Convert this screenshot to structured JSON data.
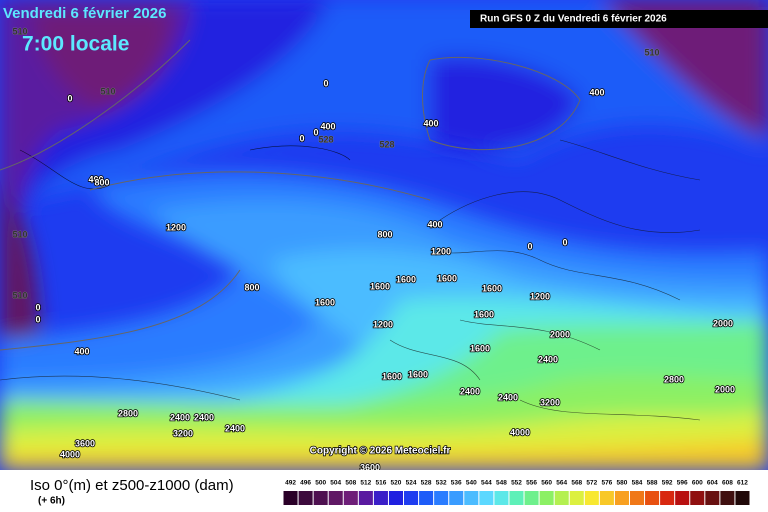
{
  "header": {
    "date": "Vendredi 6 février 2026",
    "time": "7:00 locale",
    "run": "Run GFS 0 Z du Vendredi 6 février 2026"
  },
  "contour_labels": [
    "510",
    "510",
    "510",
    "510",
    "510",
    "0",
    "0",
    "400",
    "400",
    "0",
    "528",
    "0",
    "528",
    "400",
    "400",
    "800",
    "1200",
    "800",
    "400",
    "1200",
    "800",
    "1600",
    "1600",
    "1600",
    "1600",
    "1600",
    "1600",
    "1200",
    "1200",
    "2000",
    "1600",
    "1600",
    "1600",
    "2400",
    "2400",
    "2400",
    "3200",
    "2800",
    "2400",
    "2400",
    "3200",
    "2400",
    "3600",
    "4000",
    "4000",
    "2000",
    "2000",
    "2800",
    "3600",
    "0",
    "0",
    "400",
    "0",
    "0"
  ],
  "copyright": "Copyright © 2026 Meteociel.fr",
  "footer": {
    "title": "Iso 0°(m) et z500-z1000 (dam)",
    "subtitle": "(+ 6h)"
  },
  "legend": {
    "values": [
      492,
      496,
      500,
      504,
      508,
      512,
      516,
      520,
      524,
      528,
      532,
      536,
      540,
      544,
      548,
      552,
      556,
      560,
      564,
      568,
      572,
      576,
      580,
      584,
      588,
      592,
      596,
      600,
      604,
      608,
      612
    ],
    "colors": [
      "#2a0028",
      "#3c0a3c",
      "#4e1050",
      "#601864",
      "#6e1e78",
      "#5a1aa0",
      "#3a1ec8",
      "#2020e0",
      "#1e3cf0",
      "#1e5cf8",
      "#2a7cff",
      "#3a9cff",
      "#4cbcff",
      "#5cd8ff",
      "#5ce8e8",
      "#5ef0b8",
      "#6ef08c",
      "#8cf064",
      "#b4f050",
      "#dcf040",
      "#f8e830",
      "#f8c828",
      "#f8a020",
      "#f07818",
      "#e85010",
      "#d82810",
      "#b81010",
      "#901010",
      "#681010",
      "#401010",
      "#200808"
    ]
  }
}
